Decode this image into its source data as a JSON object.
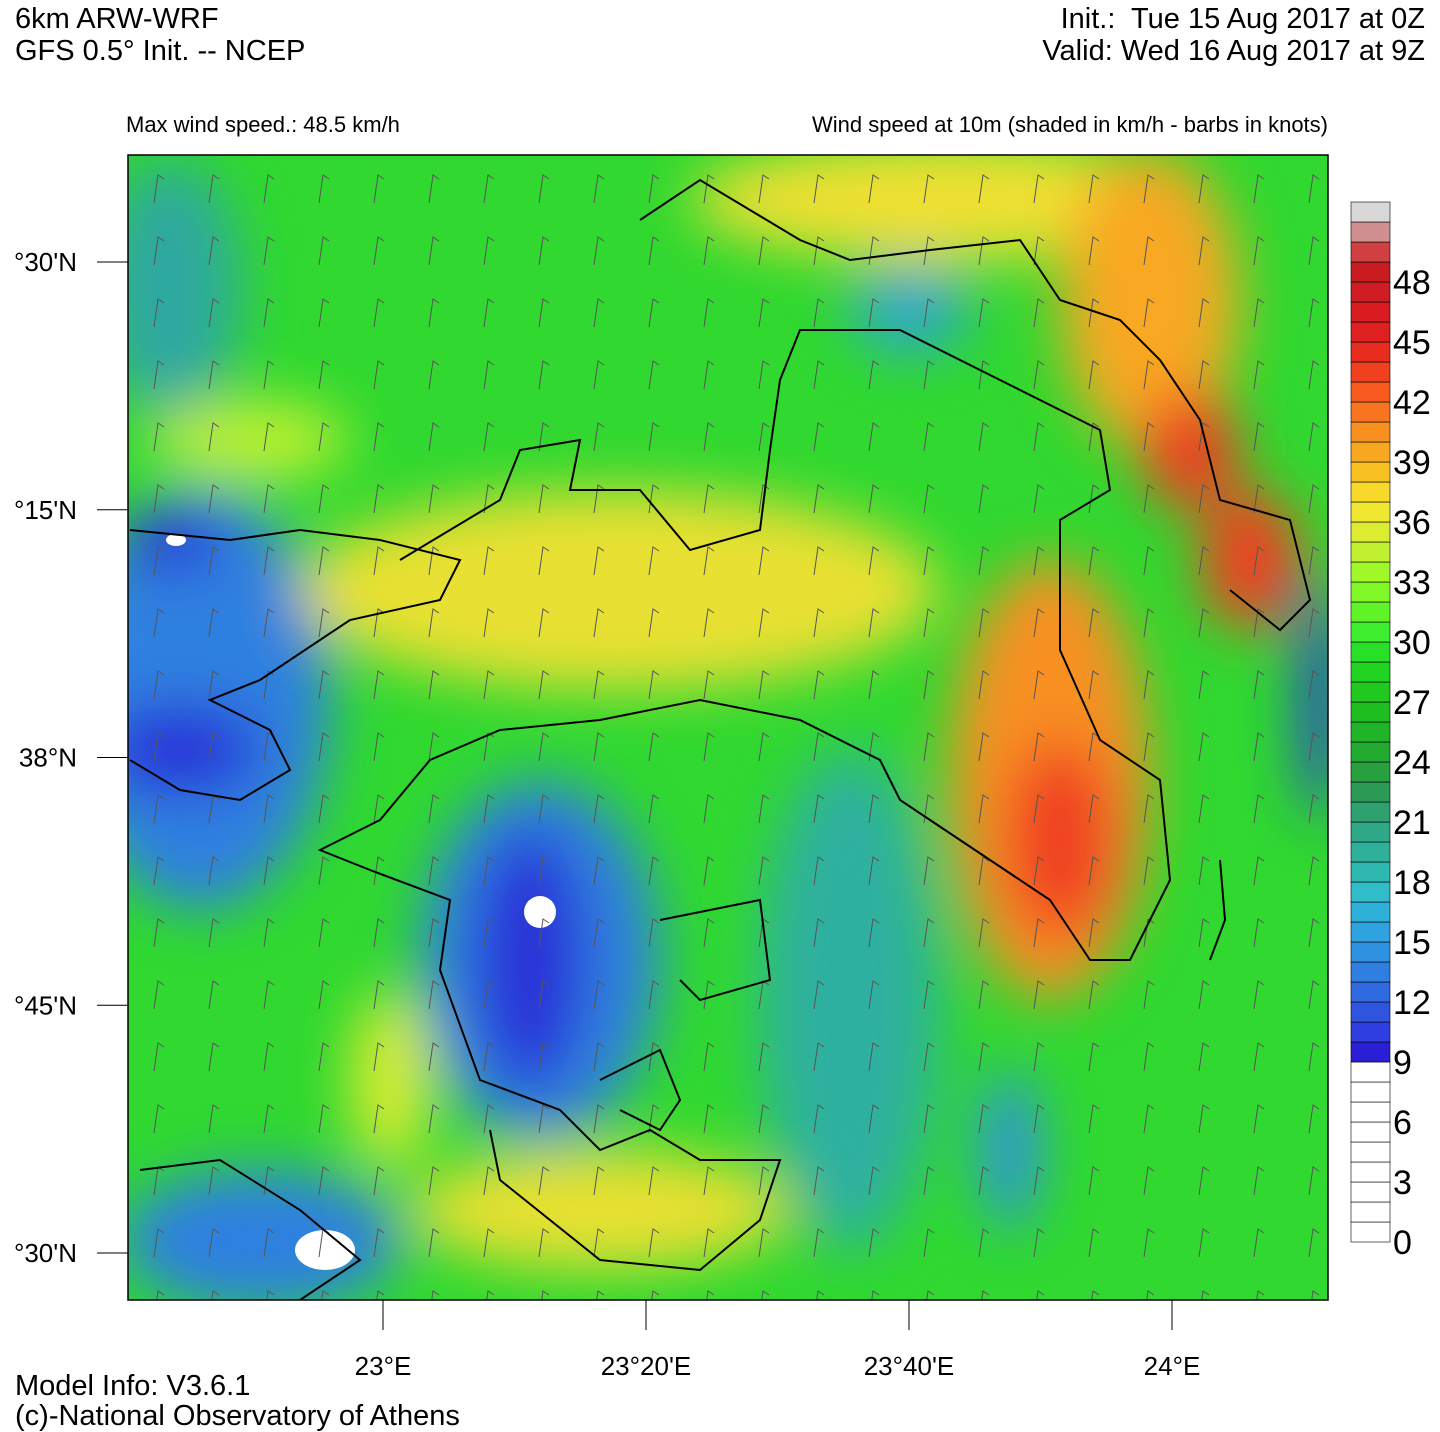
{
  "header": {
    "model": "6km ARW-WRF",
    "source": "GFS 0.5° Init. -- NCEP",
    "init": "Init.:  Tue 15 Aug 2017 at 0Z",
    "valid": "Valid: Wed 16 Aug 2017 at 9Z",
    "max_wind": "Max wind speed.: 48.5 km/h",
    "description": "Wind speed at 10m (shaded in km/h - barbs in knots)"
  },
  "map": {
    "lat_labels": [
      "°30'N",
      "°15'N",
      "38°N",
      "°45'N",
      "°30'N"
    ],
    "lon_labels": [
      "23°E",
      "23°20'E",
      "23°40'E",
      "24°E"
    ]
  },
  "colorbar": {
    "range": [
      0,
      52
    ],
    "ticks": [
      0,
      3,
      6,
      9,
      12,
      15,
      18,
      21,
      24,
      27,
      30,
      33,
      36,
      39,
      42,
      45,
      48
    ],
    "colors": [
      "#ffffff",
      "#ffffff",
      "#ffffff",
      "#ffffff",
      "#ffffff",
      "#ffffff",
      "#ffffff",
      "#ffffff",
      "#ffffff",
      "#2a1fd6",
      "#2e3ee0",
      "#2f55e0",
      "#2f6ae0",
      "#2f7fe0",
      "#2f92e0",
      "#2fa2e0",
      "#2fb0d8",
      "#30bcc8",
      "#2fb8b0",
      "#2fb09a",
      "#2fa888",
      "#2fa070",
      "#2c9a55",
      "#28a040",
      "#22aa30",
      "#20b428",
      "#1ebe20",
      "#20c820",
      "#22d422",
      "#28e028",
      "#40ee30",
      "#60f428",
      "#80f828",
      "#a0f828",
      "#c0f030",
      "#dcec30",
      "#f0e830",
      "#f8d828",
      "#f8c020",
      "#f8a820",
      "#f89020",
      "#f87420",
      "#f85a20",
      "#f04020",
      "#e82c20",
      "#e02020",
      "#d81c20",
      "#d01c24",
      "#c81c20",
      "#d04040",
      "#d09090",
      "#d8d8d8"
    ]
  },
  "footer": {
    "model_info": "Model Info: V3.6.1",
    "credit": "(c)-National Observatory of Athens"
  }
}
